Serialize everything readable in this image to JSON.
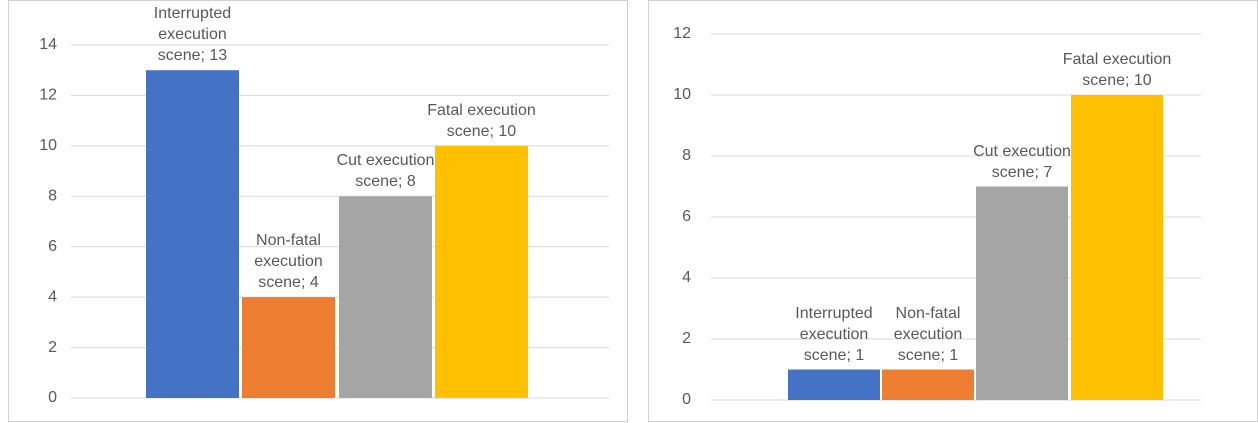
{
  "chart_data": [
    {
      "type": "bar",
      "values": [
        13,
        4,
        8,
        10
      ],
      "value_labels": [
        "Interrupted execution scene; 13",
        "Non-fatal execution scene; 4",
        "Cut execution scene; 8",
        "Fatal execution scene; 10"
      ],
      "colors": [
        "#4472c4",
        "#ed7d31",
        "#a5a5a5",
        "#ffc000"
      ],
      "ylim": [
        0,
        14
      ],
      "yticks": [
        0,
        2,
        4,
        6,
        8,
        10,
        12,
        14
      ],
      "grid": true
    },
    {
      "type": "bar",
      "values": [
        1,
        1,
        7,
        10
      ],
      "value_labels": [
        "Interrupted execution scene; 1",
        "Non-fatal execution scene; 1",
        "Cut execution scene; 7",
        "Fatal execution scene; 10"
      ],
      "colors": [
        "#4472c4",
        "#ed7d31",
        "#a5a5a5",
        "#ffc000"
      ],
      "ylim": [
        0,
        12
      ],
      "yticks": [
        0,
        2,
        4,
        6,
        8,
        10,
        12
      ],
      "grid": true
    }
  ]
}
